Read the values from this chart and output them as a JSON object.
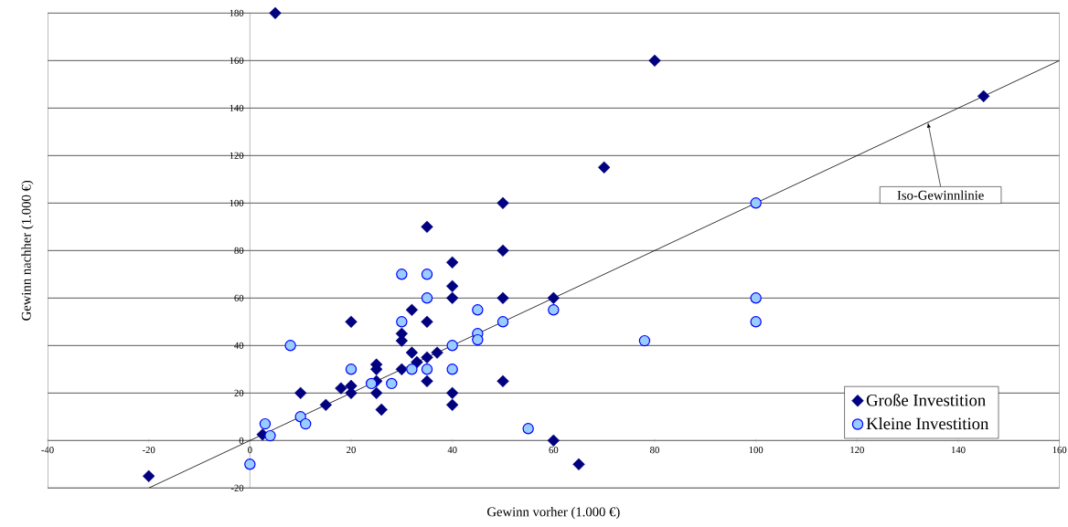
{
  "chart_data": {
    "type": "scatter",
    "xlabel": "Gewinn vorher (1.000 €)",
    "ylabel": "Gewinn nachher (1.000 €)",
    "xlim": [
      -40,
      160
    ],
    "ylim": [
      -20,
      180
    ],
    "xticks": [
      -40,
      -20,
      0,
      20,
      40,
      60,
      80,
      100,
      120,
      140,
      160
    ],
    "yticks": [
      -20,
      0,
      20,
      40,
      60,
      80,
      100,
      120,
      140,
      160,
      180
    ],
    "grid": "y",
    "legend": "bottom right",
    "annotations": [
      {
        "text": "Iso-Gewinnlinie",
        "x": 134,
        "y": 134
      }
    ],
    "series": [
      {
        "name": "Große Investition",
        "color": "#000080",
        "marker": "diamond",
        "x": [
          -20,
          2.5,
          10,
          15,
          18,
          20,
          20,
          20,
          25,
          25,
          25,
          25,
          26,
          30,
          30,
          30,
          32,
          32,
          33,
          35,
          35,
          35,
          35,
          37,
          40,
          40,
          40,
          40,
          40,
          50,
          50,
          50,
          50,
          60,
          60,
          65,
          5,
          80,
          70,
          145
        ],
        "values": [
          -15,
          2.5,
          20,
          15,
          22,
          50,
          23,
          20,
          32,
          30,
          25,
          20,
          13,
          45,
          42,
          30,
          55,
          37,
          33,
          90,
          50,
          35,
          25,
          37,
          75,
          65,
          60,
          20,
          15,
          100,
          80,
          60,
          25,
          60,
          0,
          -10,
          180,
          160,
          115,
          145
        ]
      },
      {
        "name": "Kleine Investition",
        "color": "#99ccff",
        "marker": "circle",
        "x": [
          0,
          3,
          4,
          8,
          10,
          11,
          20,
          24,
          28,
          30,
          30,
          32,
          35,
          35,
          35,
          40,
          40,
          45,
          45,
          45,
          50,
          55,
          60,
          78,
          100,
          100,
          100
        ],
        "values": [
          -10,
          7,
          2,
          40,
          10,
          7,
          30,
          24,
          24,
          70,
          50,
          30,
          70,
          60,
          30,
          40,
          30,
          55,
          45,
          42.4,
          50,
          5,
          55,
          42,
          100,
          60,
          50
        ]
      },
      {
        "type": "line",
        "color": "#000000",
        "marker": "none",
        "x": [
          -20,
          160
        ],
        "values": [
          -20,
          160
        ]
      }
    ]
  }
}
